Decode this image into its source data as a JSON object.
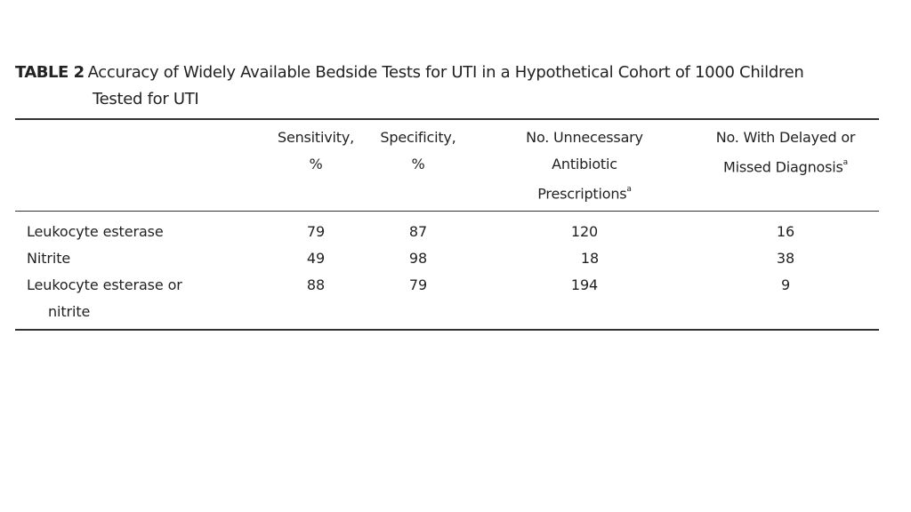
{
  "table": {
    "label": "TABLE 2",
    "title_line1": "Accuracy of Widely Available Bedside Tests for UTI in a Hypothetical Cohort of 1000 Children",
    "title_line2": "Tested for UTI",
    "columns": [
      {
        "line1": "Sensitivity,",
        "line2": "%",
        "line3": ""
      },
      {
        "line1": "Specificity,",
        "line2": "%",
        "line3": ""
      },
      {
        "line1": "No. Unnecessary",
        "line2": "Antibiotic",
        "line3": "Prescriptions",
        "footnote": "a"
      },
      {
        "line1": "No. With Delayed or",
        "line2": "Missed Diagnosis",
        "footnote": "a"
      }
    ],
    "rows": [
      {
        "label_line1": "Leukocyte esterase",
        "label_line2": "",
        "sensitivity": "79",
        "specificity": "87",
        "unnecessary_rx": "120",
        "delayed_dx": "16"
      },
      {
        "label_line1": "Nitrite",
        "label_line2": "",
        "sensitivity": "49",
        "specificity": "98",
        "unnecessary_rx": "18",
        "delayed_dx": "38"
      },
      {
        "label_line1": "Leukocyte esterase or",
        "label_line2": "nitrite",
        "sensitivity": "88",
        "specificity": "79",
        "unnecessary_rx": "194",
        "delayed_dx": "9"
      }
    ]
  }
}
